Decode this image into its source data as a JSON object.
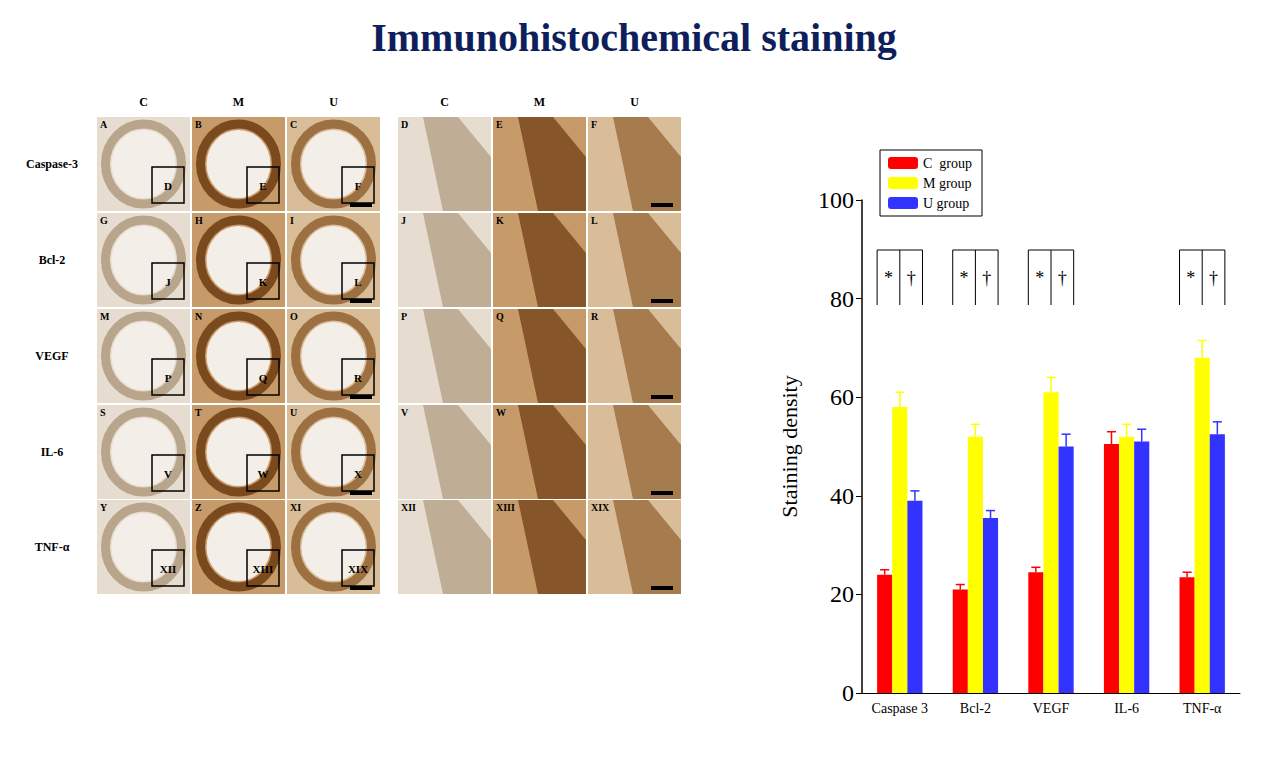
{
  "figure": {
    "title": "Immunohistochemical staining",
    "columns": [
      "C",
      "M",
      "U",
      "C",
      "M",
      "U"
    ],
    "rows": [
      {
        "label": "Caspase-3",
        "panels": [
          "A",
          "B",
          "C",
          "D",
          "E",
          "F"
        ],
        "insets": [
          "D",
          "E",
          "F"
        ]
      },
      {
        "label": "Bcl-2",
        "panels": [
          "G",
          "H",
          "I",
          "J",
          "K",
          "L"
        ],
        "insets": [
          "J",
          "K",
          "L"
        ]
      },
      {
        "label": "VEGF",
        "panels": [
          "M",
          "N",
          "O",
          "P",
          "Q",
          "R"
        ],
        "insets": [
          "P",
          "Q",
          "R"
        ]
      },
      {
        "label": "IL-6",
        "panels": [
          "S",
          "T",
          "U",
          "V",
          "W",
          null
        ],
        "insets": [
          "V",
          "W",
          "X"
        ]
      },
      {
        "label": "TNF-α",
        "panels": [
          "Y",
          "Z",
          "XI",
          "XII",
          "XIII",
          "XIX"
        ],
        "insets": [
          "XII",
          "XIII",
          "XIX"
        ]
      }
    ]
  },
  "chart_data": {
    "type": "bar",
    "categories": [
      "Caspase 3",
      "Bcl-2",
      "VEGF",
      "IL-6",
      "TNF-α"
    ],
    "series": [
      {
        "name": "C  group",
        "color": "#ff0000",
        "values": [
          24,
          21,
          24.5,
          50.5,
          23.5
        ],
        "errors": [
          1,
          1,
          1,
          2.5,
          1
        ]
      },
      {
        "name": "M group",
        "color": "#ffff00",
        "values": [
          58,
          52,
          61,
          52,
          68
        ],
        "errors": [
          3,
          2.5,
          3,
          2.5,
          3.5
        ]
      },
      {
        "name": "U group",
        "color": "#3333ff",
        "values": [
          39,
          35.5,
          50,
          51,
          52.5
        ],
        "errors": [
          2,
          1.5,
          2.5,
          2.5,
          2.5
        ]
      }
    ],
    "y_label": "Staining density",
    "ylim": [
      0,
      100
    ],
    "yticks": [
      0,
      20,
      40,
      60,
      80,
      100
    ],
    "grid": false,
    "legend": "upper left",
    "annotations": [
      {
        "category": "Caspase 3",
        "texts": [
          "*",
          "†"
        ]
      },
      {
        "category": "Bcl-2",
        "texts": [
          "*",
          "†"
        ]
      },
      {
        "category": "VEGF",
        "texts": [
          "*",
          "†"
        ]
      },
      {
        "category": "TNF-α",
        "texts": [
          "*",
          "†"
        ]
      }
    ]
  }
}
